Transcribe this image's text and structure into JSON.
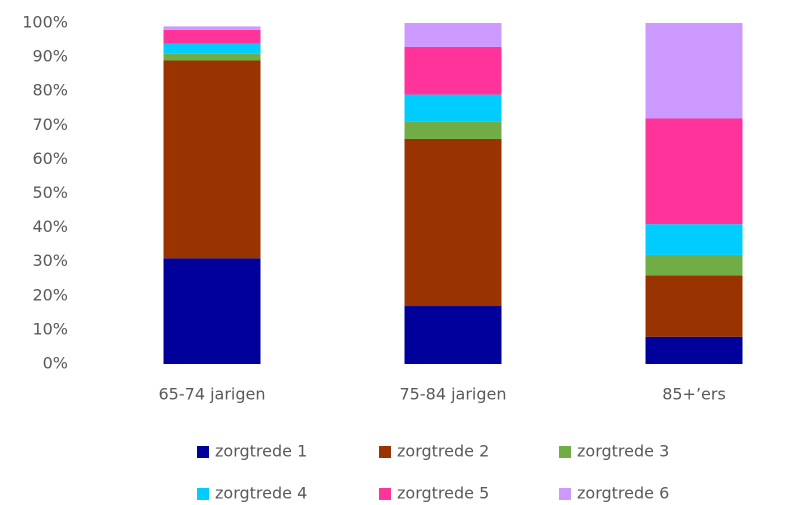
{
  "chart_data": {
    "type": "stacked_bar",
    "categories": [
      "65-74 jarigen",
      "75-84 jarigen",
      "85+’ers"
    ],
    "series": [
      {
        "name": "zorgtrede 1",
        "color": "#00009a",
        "values": [
          31,
          17,
          8
        ]
      },
      {
        "name": "zorgtrede 2",
        "color": "#993300",
        "values": [
          58,
          49,
          18
        ]
      },
      {
        "name": "zorgtrede 3",
        "color": "#70ad47",
        "values": [
          2,
          5,
          6
        ]
      },
      {
        "name": "zorgtrede 4",
        "color": "#00ccff",
        "values": [
          3,
          8,
          9
        ]
      },
      {
        "name": "zorgtrede 5",
        "color": "#ff3399",
        "values": [
          4,
          14,
          31
        ]
      },
      {
        "name": "zorgtrede 6",
        "color": "#cc99ff",
        "values": [
          1,
          7,
          28
        ]
      }
    ],
    "ylim": [
      0,
      100
    ],
    "yticks": [
      {
        "value": 0,
        "label": "0%"
      },
      {
        "value": 10,
        "label": "10%"
      },
      {
        "value": 20,
        "label": "20%"
      },
      {
        "value": 30,
        "label": "30%"
      },
      {
        "value": 40,
        "label": "40%"
      },
      {
        "value": 50,
        "label": "50%"
      },
      {
        "value": 60,
        "label": "60%"
      },
      {
        "value": 70,
        "label": "70%"
      },
      {
        "value": 80,
        "label": "80%"
      },
      {
        "value": 90,
        "label": "90%"
      },
      {
        "value": 100,
        "label": "100%"
      }
    ],
    "legend": "bottom"
  }
}
